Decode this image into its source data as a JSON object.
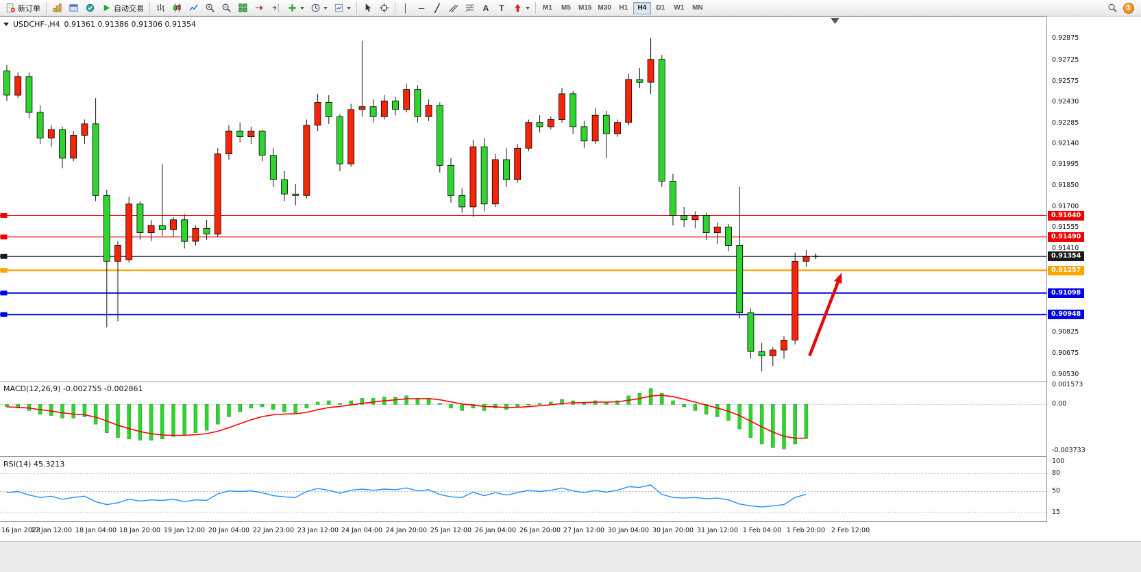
{
  "toolbar": {
    "new_order": "新订单",
    "autotrading": "自动交易",
    "timeframes": [
      "M1",
      "M5",
      "M15",
      "M30",
      "H1",
      "H4",
      "D1",
      "W1",
      "MN"
    ],
    "active_timeframe": "H4",
    "notification_badge": "1",
    "icons": {
      "vertical_line_glyph": "│",
      "horizontal_line_glyph": "─",
      "trendline_glyph": "╱",
      "text_tool_glyph": "A",
      "label_tool_glyph": "T"
    }
  },
  "chart": {
    "symbol_title": "USDCHF-,H4",
    "ohlc_title": "0.91361 0.91386 0.91306 0.91354"
  },
  "chart_data": {
    "type": "candlestick",
    "symbol": "USDCHF-",
    "period": "H4",
    "open": "0.91361",
    "high": "0.91386",
    "low": "0.91306",
    "close": "0.91354",
    "ylim": [
      0.9048,
      0.9303
    ],
    "colors": {
      "bull": "#f52507",
      "bear": "#2fd42f",
      "wick": "#111111",
      "macd_bar": "#2fd42f",
      "macd_signal": "#ff0000",
      "rsi_line": "#1E90FF",
      "level_red": "#ee0000",
      "level_orange": "#ffa500",
      "level_blue": "#0000e6",
      "price_line": "#1a1a1a",
      "arrow": "#e00b0b"
    },
    "candles": [
      [
        0.9265,
        0.9269,
        0.9244,
        0.9248
      ],
      [
        0.9248,
        0.9264,
        0.9246,
        0.9261
      ],
      [
        0.9261,
        0.9264,
        0.9232,
        0.9236
      ],
      [
        0.9236,
        0.9241,
        0.9214,
        0.9218
      ],
      [
        0.9218,
        0.9227,
        0.9212,
        0.9224
      ],
      [
        0.9224,
        0.9226,
        0.9197,
        0.9204
      ],
      [
        0.9204,
        0.9223,
        0.9202,
        0.922
      ],
      [
        0.922,
        0.9231,
        0.9214,
        0.9228
      ],
      [
        0.9228,
        0.9246,
        0.9174,
        0.9178
      ],
      [
        0.9178,
        0.9182,
        0.9086,
        0.9132
      ],
      [
        0.9132,
        0.9146,
        0.909,
        0.9143
      ],
      [
        0.9133,
        0.9177,
        0.9131,
        0.9172
      ],
      [
        0.9172,
        0.9174,
        0.9147,
        0.9152
      ],
      [
        0.9152,
        0.9161,
        0.9146,
        0.9157
      ],
      [
        0.9157,
        0.92,
        0.915,
        0.9154
      ],
      [
        0.9154,
        0.9163,
        0.9149,
        0.9161
      ],
      [
        0.9161,
        0.9165,
        0.9141,
        0.9146
      ],
      [
        0.9146,
        0.9157,
        0.9143,
        0.9155
      ],
      [
        0.9155,
        0.9161,
        0.9147,
        0.9151
      ],
      [
        0.9151,
        0.9211,
        0.9149,
        0.9207
      ],
      [
        0.9207,
        0.9227,
        0.9203,
        0.9223
      ],
      [
        0.9223,
        0.9229,
        0.9215,
        0.9219
      ],
      [
        0.9219,
        0.9226,
        0.9214,
        0.9223
      ],
      [
        0.9223,
        0.9224,
        0.9202,
        0.9206
      ],
      [
        0.9206,
        0.9211,
        0.9184,
        0.9189
      ],
      [
        0.9189,
        0.9195,
        0.9174,
        0.9179
      ],
      [
        0.9179,
        0.9186,
        0.9171,
        0.9178
      ],
      [
        0.9178,
        0.9231,
        0.9176,
        0.9227
      ],
      [
        0.9227,
        0.9249,
        0.9223,
        0.9243
      ],
      [
        0.9243,
        0.9248,
        0.9228,
        0.9233
      ],
      [
        0.9233,
        0.9235,
        0.9195,
        0.92
      ],
      [
        0.92,
        0.9242,
        0.9198,
        0.9238
      ],
      [
        0.9238,
        0.9286,
        0.9233,
        0.924
      ],
      [
        0.924,
        0.9245,
        0.9229,
        0.9233
      ],
      [
        0.9233,
        0.9248,
        0.9231,
        0.9244
      ],
      [
        0.9244,
        0.9247,
        0.9234,
        0.9238
      ],
      [
        0.9238,
        0.9256,
        0.9236,
        0.9252
      ],
      [
        0.9252,
        0.9255,
        0.9229,
        0.9233
      ],
      [
        0.9233,
        0.9245,
        0.923,
        0.9241
      ],
      [
        0.9241,
        0.9243,
        0.9194,
        0.9199
      ],
      [
        0.9199,
        0.9204,
        0.9173,
        0.9178
      ],
      [
        0.9178,
        0.9183,
        0.9166,
        0.917
      ],
      [
        0.917,
        0.9217,
        0.9163,
        0.9212
      ],
      [
        0.9212,
        0.9218,
        0.9167,
        0.9172
      ],
      [
        0.9172,
        0.9207,
        0.917,
        0.9203
      ],
      [
        0.9203,
        0.9211,
        0.9184,
        0.9189
      ],
      [
        0.9189,
        0.9214,
        0.9187,
        0.9211
      ],
      [
        0.9211,
        0.9231,
        0.9209,
        0.9229
      ],
      [
        0.9229,
        0.9234,
        0.9222,
        0.9226
      ],
      [
        0.9226,
        0.9233,
        0.9224,
        0.9231
      ],
      [
        0.9231,
        0.9253,
        0.9229,
        0.9249
      ],
      [
        0.9249,
        0.9251,
        0.9221,
        0.9226
      ],
      [
        0.9226,
        0.923,
        0.9211,
        0.9216
      ],
      [
        0.9216,
        0.9239,
        0.9214,
        0.9234
      ],
      [
        0.9234,
        0.9237,
        0.9204,
        0.9221
      ],
      [
        0.9221,
        0.9231,
        0.9219,
        0.9229
      ],
      [
        0.9229,
        0.9263,
        0.9227,
        0.9259
      ],
      [
        0.9259,
        0.9267,
        0.9253,
        0.9257
      ],
      [
        0.9257,
        0.9288,
        0.9249,
        0.9273
      ],
      [
        0.9273,
        0.9276,
        0.9184,
        0.9188
      ],
      [
        0.9188,
        0.9193,
        0.9157,
        0.9164
      ],
      [
        0.9164,
        0.917,
        0.9156,
        0.9161
      ],
      [
        0.9161,
        0.9167,
        0.9155,
        0.9164
      ],
      [
        0.9164,
        0.9166,
        0.9147,
        0.9152
      ],
      [
        0.9152,
        0.9159,
        0.9144,
        0.9156
      ],
      [
        0.9156,
        0.9158,
        0.9139,
        0.9143
      ],
      [
        0.9143,
        0.9184,
        0.9092,
        0.9096
      ],
      [
        0.9096,
        0.9099,
        0.9064,
        0.9069
      ],
      [
        0.9069,
        0.9075,
        0.9055,
        0.9066
      ],
      [
        0.9066,
        0.9072,
        0.9059,
        0.907
      ],
      [
        0.907,
        0.908,
        0.9064,
        0.9077
      ],
      [
        0.9077,
        0.9138,
        0.9074,
        0.9132
      ],
      [
        0.9132,
        0.914,
        0.9128,
        0.91354
      ]
    ],
    "time_labels": [
      "16 Jan 2023",
      "17 Jan 12:00",
      "18 Jan 04:00",
      "18 Jan 20:00",
      "19 Jan 12:00",
      "20 Jan 04:00",
      "22 Jan 23:00",
      "23 Jan 12:00",
      "24 Jan 04:00",
      "24 Jan 20:00",
      "25 Jan 12:00",
      "26 Jan 04:00",
      "26 Jan 20:00",
      "27 Jan 12:00",
      "30 Jan 04:00",
      "30 Jan 20:00",
      "31 Jan 12:00",
      "1 Feb 04:00",
      "1 Feb 20:00",
      "2 Feb 12:00"
    ],
    "price_axis": [
      "0.92875",
      "0.92725",
      "0.92575",
      "0.92430",
      "0.92285",
      "0.92140",
      "0.91995",
      "0.91850",
      "0.91700",
      "0.91555",
      "0.91410",
      "0.90825",
      "0.90675",
      "0.90530"
    ],
    "levels": [
      {
        "price": 0.9164,
        "label": "0.91640",
        "color": "#ee0000",
        "width": 1
      },
      {
        "price": 0.9149,
        "label": "0.91490",
        "color": "#ee0000",
        "width": 1
      },
      {
        "price": 0.91354,
        "label": "0.91354",
        "color": "#1a1a1a",
        "width": 1
      },
      {
        "price": 0.91257,
        "label": "0.91257",
        "color": "#ffa500",
        "width": 2.5
      },
      {
        "price": 0.91098,
        "label": "0.91098",
        "color": "#0000e6",
        "width": 2
      },
      {
        "price": 0.90948,
        "label": "0.90948",
        "color": "#0000e6",
        "width": 2
      }
    ],
    "indicators": [
      {
        "name": "MACD",
        "display": "MACD(12,26,9) -0.002755 -0.002861",
        "ylim": [
          -0.0042,
          0.0018
        ],
        "axis": [
          {
            "v": 0.001573,
            "label": "0.001573"
          },
          {
            "v": 0.0,
            "label": "0.00"
          },
          {
            "v": -0.003733,
            "label": "-0.003733"
          }
        ],
        "values": [
          -0.0002,
          -0.0003,
          -0.0005,
          -0.0008,
          -0.0009,
          -0.0011,
          -0.0011,
          -0.001,
          -0.0016,
          -0.0023,
          -0.0027,
          -0.0028,
          -0.0029,
          -0.0029,
          -0.0028,
          -0.0026,
          -0.0025,
          -0.0023,
          -0.0021,
          -0.0016,
          -0.001,
          -0.0006,
          -0.0003,
          -0.0002,
          -0.0004,
          -0.0006,
          -0.0007,
          -0.0003,
          0.0002,
          0.0003,
          0.0001,
          0.0003,
          0.0005,
          0.0005,
          0.0006,
          0.0006,
          0.0007,
          0.0005,
          0.0005,
          0.0001,
          -0.0003,
          -0.0005,
          -0.0003,
          -0.0005,
          -0.0003,
          -0.0004,
          -0.0002,
          0.0,
          0.0001,
          0.0002,
          0.0004,
          0.0003,
          0.0002,
          0.0003,
          0.0002,
          0.0003,
          0.0007,
          0.0009,
          0.0013,
          0.0009,
          0.0003,
          -0.0002,
          -0.0005,
          -0.0008,
          -0.001,
          -0.0013,
          -0.002,
          -0.0027,
          -0.0032,
          -0.0035,
          -0.0036,
          -0.0032,
          -0.002755
        ]
      },
      {
        "name": "RSI",
        "display": "RSI(14) 45.3213",
        "ylim": [
          0,
          108
        ],
        "levels": [
          80,
          50,
          15
        ],
        "axis": [
          {
            "v": 100,
            "label": "100"
          },
          {
            "v": 80,
            "label": "80"
          },
          {
            "v": 50,
            "label": "50"
          },
          {
            "v": 15,
            "label": "15"
          }
        ],
        "values": [
          48,
          50,
          44,
          40,
          42,
          37,
          40,
          42,
          33,
          28,
          31,
          37,
          34,
          36,
          35,
          37,
          33,
          36,
          35,
          46,
          51,
          50,
          51,
          48,
          43,
          41,
          40,
          50,
          55,
          52,
          47,
          52,
          54,
          52,
          54,
          53,
          56,
          51,
          53,
          45,
          41,
          40,
          49,
          43,
          48,
          44,
          48,
          52,
          50,
          52,
          56,
          51,
          48,
          52,
          49,
          52,
          58,
          57,
          61,
          45,
          40,
          39,
          40,
          38,
          39,
          36,
          29,
          26,
          24,
          26,
          28,
          40,
          45.3213
        ]
      }
    ],
    "arrow": {
      "x1_bar": 72.3,
      "price1": 0.9066,
      "x2_bar": 75.2,
      "price2": 0.9124
    }
  }
}
